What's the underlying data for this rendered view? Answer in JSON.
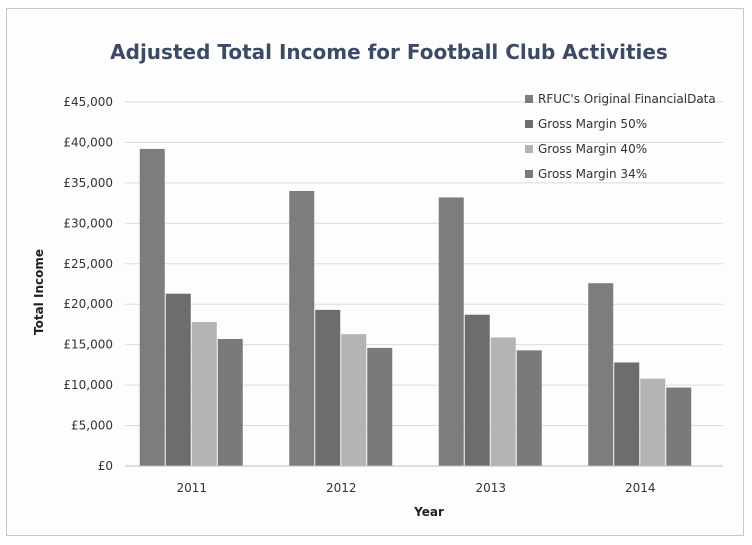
{
  "chart_data": {
    "type": "bar",
    "title": "Adjusted Total Income for Football Club Activities",
    "xlabel": "Year",
    "ylabel": "Total Income",
    "categories": [
      "2011",
      "2012",
      "2013",
      "2014"
    ],
    "series": [
      {
        "name": "RFUC's Original FinancialData",
        "values": [
          39200,
          34000,
          33200,
          22600
        ],
        "color": "#7d7d7d"
      },
      {
        "name": "Gross Margin 50%",
        "values": [
          21300,
          19300,
          18700,
          12800
        ],
        "color": "#6d6d6d"
      },
      {
        "name": "Gross Margin 40%",
        "values": [
          17800,
          16300,
          15900,
          10800
        ],
        "color": "#b4b4b4"
      },
      {
        "name": "Gross Margin 34%",
        "values": [
          15700,
          14600,
          14300,
          9700
        ],
        "color": "#7a7a7a"
      }
    ],
    "ylim": [
      0,
      45000
    ],
    "yticks": [
      "£0",
      "£5,000",
      "£10,000",
      "£15,000",
      "£20,000",
      "£25,000",
      "£30,000",
      "£35,000",
      "£40,000",
      "£45,000"
    ],
    "grid": true,
    "legend_position": "top-right"
  }
}
